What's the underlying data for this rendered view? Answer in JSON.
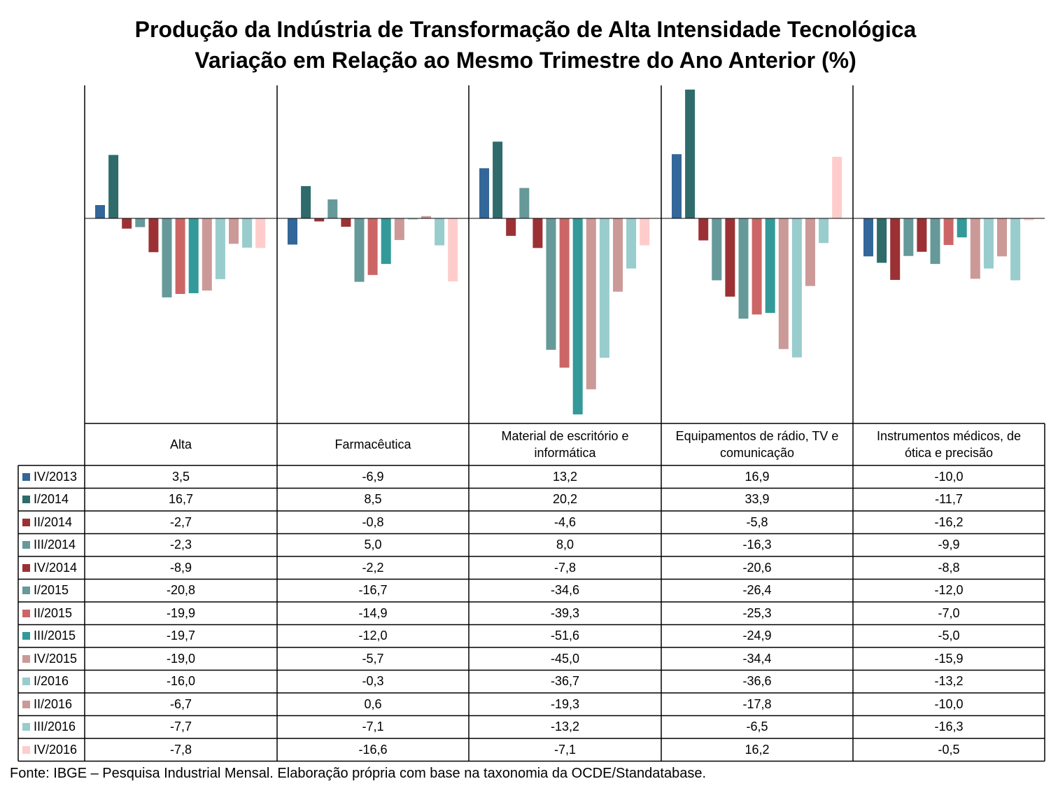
{
  "title_line1": "Produção da Indústria de Transformação de Alta Intensidade Tecnológica",
  "title_line2": "Variação em Relação ao Mesmo Trimestre do Ano Anterior (%)",
  "source": "Fonte: IBGE – Pesquisa Industrial Mensal. Elaboração própria com base na taxonomia da OCDE/Standatabase.",
  "chart_data": {
    "type": "bar",
    "categories": [
      "Alta",
      "Farmacêutica",
      "Material de escritório e informática",
      "Equipamentos de rádio, TV e comunicação",
      "Instrumentos médicos, de ótica e precisão"
    ],
    "category_lines": [
      [
        "Alta"
      ],
      [
        "Farmacêutica"
      ],
      [
        "Material de escritório e",
        "informática"
      ],
      [
        "Equipamentos de rádio, TV e",
        "comunicação"
      ],
      [
        "Instrumentos médicos, de",
        "ótica e precisão"
      ]
    ],
    "series": [
      {
        "name": "IV/2013",
        "color": "#336699",
        "values": [
          3.5,
          -6.9,
          13.2,
          16.9,
          -10.0
        ],
        "labels": [
          "3,5",
          "-6,9",
          "13,2",
          "16,9",
          "-10,0"
        ]
      },
      {
        "name": "I/2014",
        "color": "#2F6B6B",
        "values": [
          16.7,
          8.5,
          20.2,
          33.9,
          -11.7
        ],
        "labels": [
          "16,7",
          "8,5",
          "20,2",
          "33,9",
          "-11,7"
        ]
      },
      {
        "name": "II/2014",
        "color": "#9C3135",
        "values": [
          -2.7,
          -0.8,
          -4.6,
          -5.8,
          -16.2
        ],
        "labels": [
          "-2,7",
          "-0,8",
          "-4,6",
          "-5,8",
          "-16,2"
        ]
      },
      {
        "name": "III/2014",
        "color": "#669999",
        "values": [
          -2.3,
          5.0,
          8.0,
          -16.3,
          -9.9
        ],
        "labels": [
          "-2,3",
          "5,0",
          "8,0",
          "-16,3",
          "-9,9"
        ]
      },
      {
        "name": "IV/2014",
        "color": "#9C3135",
        "values": [
          -8.9,
          -2.2,
          -7.8,
          -20.6,
          -8.8
        ],
        "labels": [
          "-8,9",
          "-2,2",
          "-7,8",
          "-20,6",
          "-8,8"
        ]
      },
      {
        "name": "I/2015",
        "color": "#669999",
        "values": [
          -20.8,
          -16.7,
          -34.6,
          -26.4,
          -12.0
        ],
        "labels": [
          "-20,8",
          "-16,7",
          "-34,6",
          "-26,4",
          "-12,0"
        ]
      },
      {
        "name": "II/2015",
        "color": "#CC6666",
        "values": [
          -19.9,
          -14.9,
          -39.3,
          -25.3,
          -7.0
        ],
        "labels": [
          "-19,9",
          "-14,9",
          "-39,3",
          "-25,3",
          "-7,0"
        ]
      },
      {
        "name": "III/2015",
        "color": "#339999",
        "values": [
          -19.7,
          -12.0,
          -51.6,
          -24.9,
          -5.0
        ],
        "labels": [
          "-19,7",
          "-12,0",
          "-51,6",
          "-24,9",
          "-5,0"
        ]
      },
      {
        "name": "IV/2015",
        "color": "#CC9999",
        "values": [
          -19.0,
          -5.7,
          -45.0,
          -34.4,
          -15.9
        ],
        "labels": [
          "-19,0",
          "-5,7",
          "-45,0",
          "-34,4",
          "-15,9"
        ]
      },
      {
        "name": "I/2016",
        "color": "#99CCCC",
        "values": [
          -16.0,
          -0.3,
          -36.7,
          -36.6,
          -13.2
        ],
        "labels": [
          "-16,0",
          "-0,3",
          "-36,7",
          "-36,6",
          "-13,2"
        ]
      },
      {
        "name": "II/2016",
        "color": "#CC9999",
        "values": [
          -6.7,
          0.6,
          -19.3,
          -17.8,
          -10.0
        ],
        "labels": [
          "-6,7",
          "0,6",
          "-19,3",
          "-17,8",
          "-10,0"
        ]
      },
      {
        "name": "III/2016",
        "color": "#99CCCC",
        "values": [
          -7.7,
          -7.1,
          -13.2,
          -6.5,
          -16.3
        ],
        "labels": [
          "-7,7",
          "-7,1",
          "-13,2",
          "-6,5",
          "-16,3"
        ]
      },
      {
        "name": "IV/2016",
        "color": "#FFCCCC",
        "values": [
          -7.8,
          -16.6,
          -7.1,
          16.2,
          -0.5
        ],
        "labels": [
          "-7,8",
          "-16,6",
          "-7,1",
          "16,2",
          "-0,5"
        ]
      }
    ],
    "ylim": [
      -54,
      34.5
    ],
    "legend": "data table below chart"
  }
}
